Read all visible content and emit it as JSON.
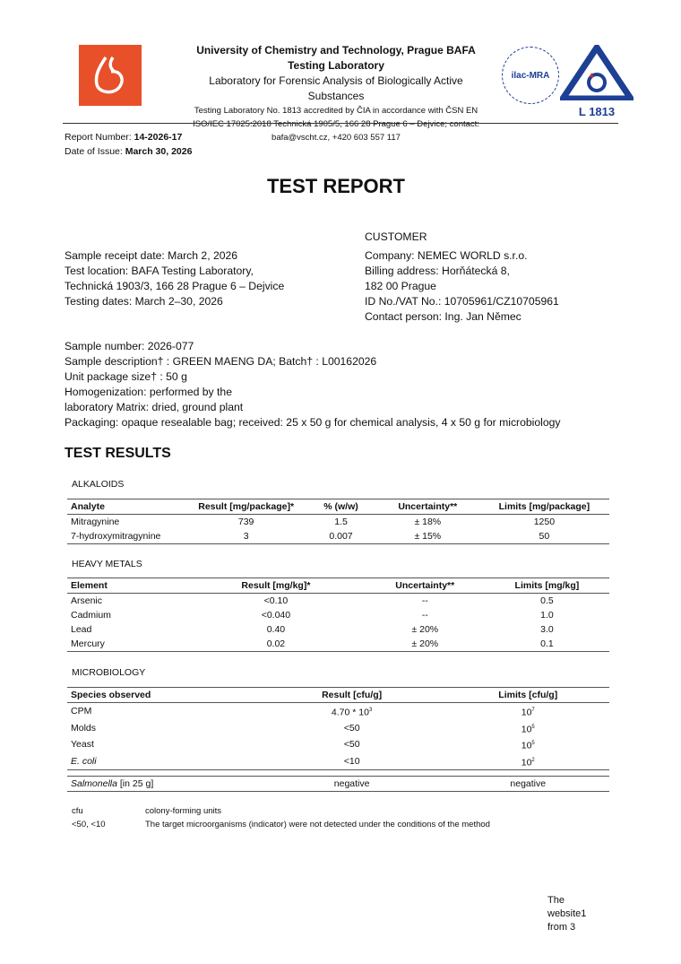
{
  "header": {
    "university": "University of Chemistry and Technology, Prague BAFA",
    "lab": "Testing Laboratory",
    "subtitle": "Laboratory for Forensic Analysis of Biologically Active Substances",
    "accreditation": "Testing Laboratory No. 1813 accredited by ČIA in accordance with ČSN EN ISO/IEC 17025:2018 Technická 1905/5, 166 28 Prague 6 – Dejvice; contact: bafa@vscht.cz, +420 603 557 117",
    "ilac_logo_text": "ilac-MRA",
    "cai_logo_text": "L 1813",
    "brand_color": "#e8502a",
    "accent_color": "#1d3f94"
  },
  "report": {
    "number_label": "Report Number:",
    "number": "14-2026-17",
    "date_label": "Date of Issue:",
    "date": "March 30, 2026",
    "title": "TEST REPORT"
  },
  "info_left": [
    "Sample receipt date: March 2, 2026",
    "Test location: BAFA Testing Laboratory,",
    "Technická 1903/3, 166 28 Prague 6 – Dejvice",
    "Testing dates: March 2–30, 2026"
  ],
  "customer": {
    "heading": "CUSTOMER",
    "lines": [
      "Company: NEMEC WORLD s.r.o.",
      "Billing address: Horňátecká 8,",
      "182 00 Prague",
      "ID No./VAT No.: 10705961/CZ10705961",
      "Contact person: Ing. Jan Němec"
    ]
  },
  "sample": [
    "Sample number: 2026-077",
    "Sample description† : GREEN MAENG DA; Batch† : L00162026",
    "Unit package size† : 50 g",
    "Homogenization: performed by the",
    "laboratory Matrix: dried, ground plant",
    "Packaging: opaque resealable bag; received: 25 x 50 g for chemical analysis, 4 x 50 g for microbiology"
  ],
  "results_title": "TEST RESULTS",
  "alkaloids": {
    "label": "ALKALOIDS",
    "headers": [
      "Analyte",
      "Result [mg/package]*",
      "% (w/w)",
      "Uncertainty**",
      "Limits [mg/package]"
    ],
    "rows": [
      [
        "Mitragynine",
        "739",
        "1.5",
        "± 18%",
        "1250"
      ],
      [
        "7-hydroxymitragynine",
        "3",
        "0.007",
        "± 15%",
        "50"
      ]
    ]
  },
  "metals": {
    "label": "HEAVY METALS",
    "headers": [
      "Element",
      "Result [mg/kg]*",
      "Uncertainty**",
      "Limits [mg/kg]"
    ],
    "rows": [
      [
        "Arsenic",
        "<0.10",
        "--",
        "0.5"
      ],
      [
        "Cadmium",
        "<0.040",
        "--",
        "1.0"
      ],
      [
        "Lead",
        "0.40",
        "± 20%",
        "3.0"
      ],
      [
        "Mercury",
        "0.02",
        "± 20%",
        "0.1"
      ]
    ]
  },
  "micro": {
    "label": "MICROBIOLOGY",
    "headers": [
      "Species observed",
      "Result [cfu/g]",
      "Limits [cfu/g]"
    ],
    "rows": [
      [
        "CPM",
        "4.70 * 10",
        "3",
        "10",
        "7"
      ],
      [
        "Molds",
        "<50",
        "",
        "10",
        "5"
      ],
      [
        "Yeast",
        "<50",
        "",
        "10",
        "5"
      ],
      [
        "E. coli",
        "<10",
        "",
        "10",
        "2"
      ]
    ],
    "salmonella": [
      "Salmonella",
      "[in 25 g]",
      "negative",
      "negative"
    ]
  },
  "notes": [
    [
      "cfu",
      "colony-forming units"
    ],
    [
      "<50, <10",
      "The target microorganisms (indicator) were not detected under the conditions of the method"
    ]
  ],
  "footer": [
    "The",
    "website1",
    "from 3"
  ]
}
